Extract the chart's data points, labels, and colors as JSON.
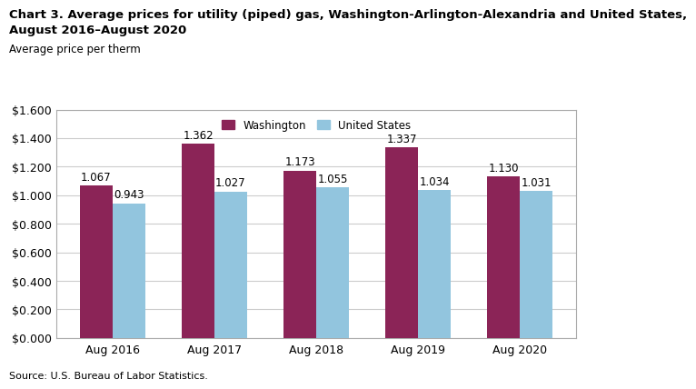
{
  "title_line1": "Chart 3. Average prices for utility (piped) gas, Washington-Arlington-Alexandria and United States,",
  "title_line2": "August 2016–August 2020",
  "ylabel": "Average price per therm",
  "source": "Source: U.S. Bureau of Labor Statistics.",
  "categories": [
    "Aug 2016",
    "Aug 2017",
    "Aug 2018",
    "Aug 2019",
    "Aug 2020"
  ],
  "washington_values": [
    1.067,
    1.362,
    1.173,
    1.337,
    1.13
  ],
  "us_values": [
    0.943,
    1.027,
    1.055,
    1.034,
    1.031
  ],
  "washington_color": "#8B2457",
  "us_color": "#92C5DE",
  "ylim": [
    0,
    1.6
  ],
  "ytick_values": [
    0.0,
    0.2,
    0.4,
    0.6,
    0.8,
    1.0,
    1.2,
    1.4,
    1.6
  ],
  "legend_washington": "Washington",
  "legend_us": "United States",
  "bar_width": 0.32,
  "background_color": "#ffffff",
  "grid_color": "#cccccc",
  "spine_color": "#aaaaaa",
  "title_fontsize": 9.5,
  "label_fontsize": 8.5,
  "tick_fontsize": 9,
  "annotation_fontsize": 8.5,
  "source_fontsize": 8
}
